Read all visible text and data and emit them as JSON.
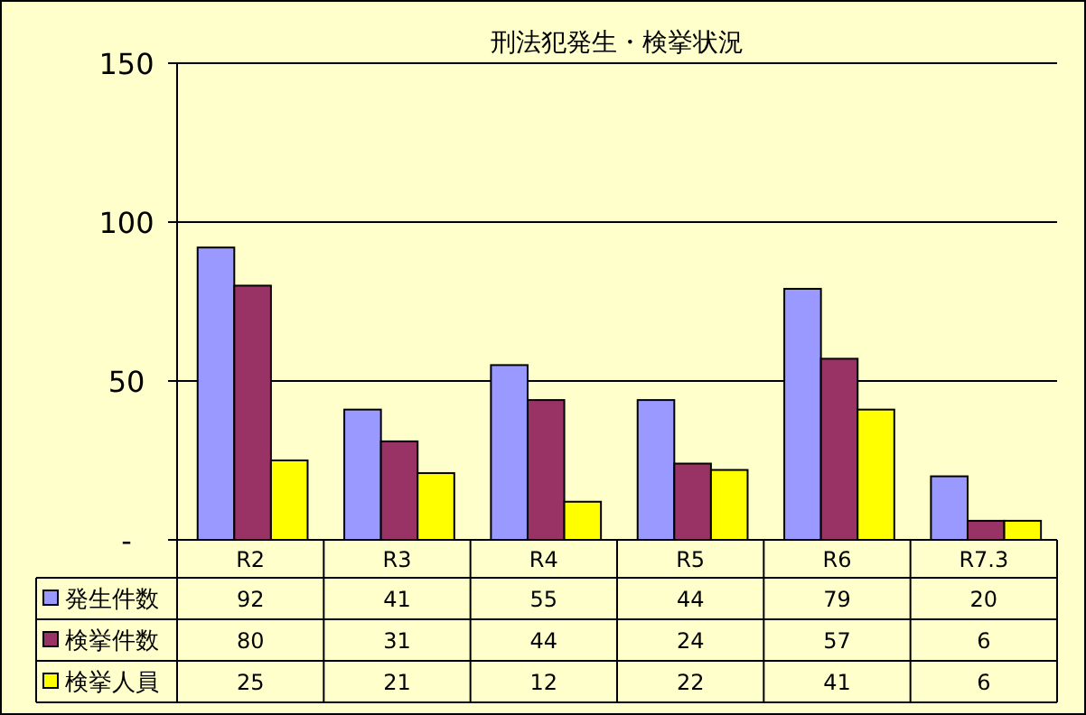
{
  "chart_data": {
    "type": "bar",
    "title": "刑法犯発生・検挙状況",
    "categories": [
      "R2",
      "R3",
      "R4",
      "R5",
      "R6",
      "R7.3"
    ],
    "series": [
      {
        "name": "発生件数",
        "color": "#9999ff",
        "values": [
          92,
          41,
          55,
          44,
          79,
          20
        ]
      },
      {
        "name": "検挙件数",
        "color": "#993366",
        "values": [
          80,
          31,
          44,
          24,
          57,
          6
        ]
      },
      {
        "name": "検挙人員",
        "color": "#ffff00",
        "values": [
          25,
          21,
          12,
          22,
          41,
          6
        ]
      }
    ],
    "ylim": [
      0,
      150
    ],
    "yticks": [
      {
        "value": 0,
        "label": "-"
      },
      50,
      100,
      150
    ],
    "grid": "y",
    "legend": "bottom",
    "data_labels": true
  }
}
